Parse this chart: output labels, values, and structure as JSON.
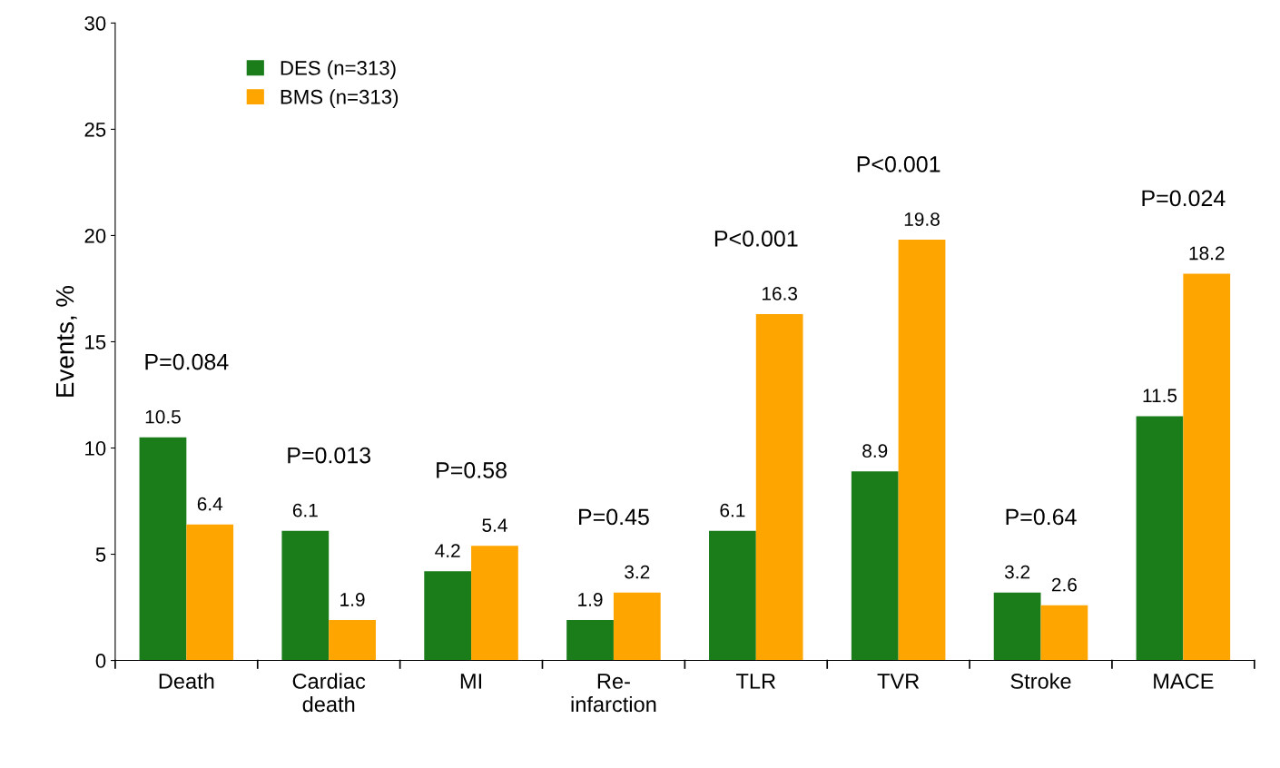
{
  "chart_data": {
    "type": "bar",
    "ylabel": "Events, %",
    "categories": [
      "Death",
      "Cardiac\ndeath",
      "MI",
      "Re-\ninfarction",
      "TLR",
      "TVR",
      "Stroke",
      "MACE"
    ],
    "series": [
      {
        "name": "DES (n=313)",
        "color": "#1a7d1a",
        "values": [
          10.5,
          6.1,
          4.2,
          1.9,
          6.1,
          8.9,
          3.2,
          11.5
        ]
      },
      {
        "name": "BMS (n=313)",
        "color": "#ffa500",
        "values": [
          6.4,
          1.9,
          5.4,
          3.2,
          16.3,
          19.8,
          2.6,
          18.2
        ]
      }
    ],
    "ylim": [
      0,
      30
    ],
    "yticks": [
      0,
      5,
      10,
      15,
      20,
      25,
      30
    ],
    "grid": false,
    "legend": "top left",
    "data_labels": true,
    "annotations": [
      "P=0.084",
      "P=0.013",
      "P=0.58",
      "P=0.45",
      "P<0.001",
      "P<0.001",
      "P=0.64",
      "P=0.024"
    ]
  }
}
